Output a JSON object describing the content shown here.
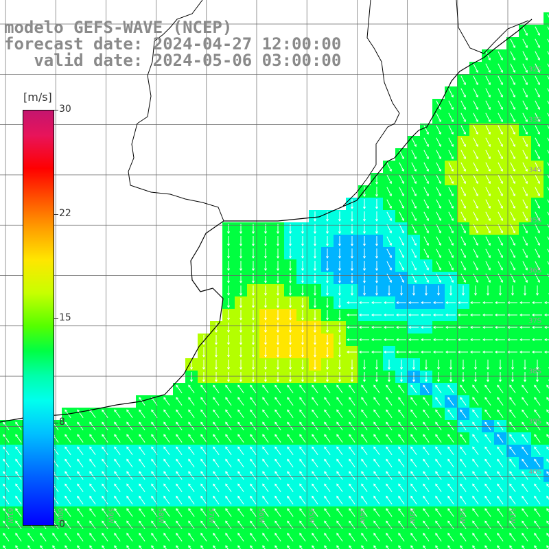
{
  "title": {
    "line1": "modelo GEFS-WAVE (NCEP)",
    "line2": "forecast date: 2024-04-27 12:00:00",
    "line3": "   valid date: 2024-05-06 03:00:00"
  },
  "colorbar": {
    "unit": "[m/s]",
    "ticks": [
      "30",
      "22",
      "15",
      "8",
      "0"
    ],
    "colors": [
      "#0000ff",
      "#00b4ff",
      "#00ffe0",
      "#00ff40",
      "#b4ff00",
      "#ffe600",
      "#ff5a00",
      "#ff0000",
      "#c4156f"
    ]
  },
  "map": {
    "lat_labels": [
      "32S",
      "33S",
      "34S",
      "35S",
      "36S",
      "37S",
      "38S",
      "39S",
      "40S"
    ],
    "lon_labels": [
      "61W",
      "60W",
      "59W",
      "58W",
      "57W",
      "56W",
      "55W",
      "54W",
      "53W",
      "52W",
      "51W"
    ],
    "field": "wind speed with direction arrows"
  }
}
